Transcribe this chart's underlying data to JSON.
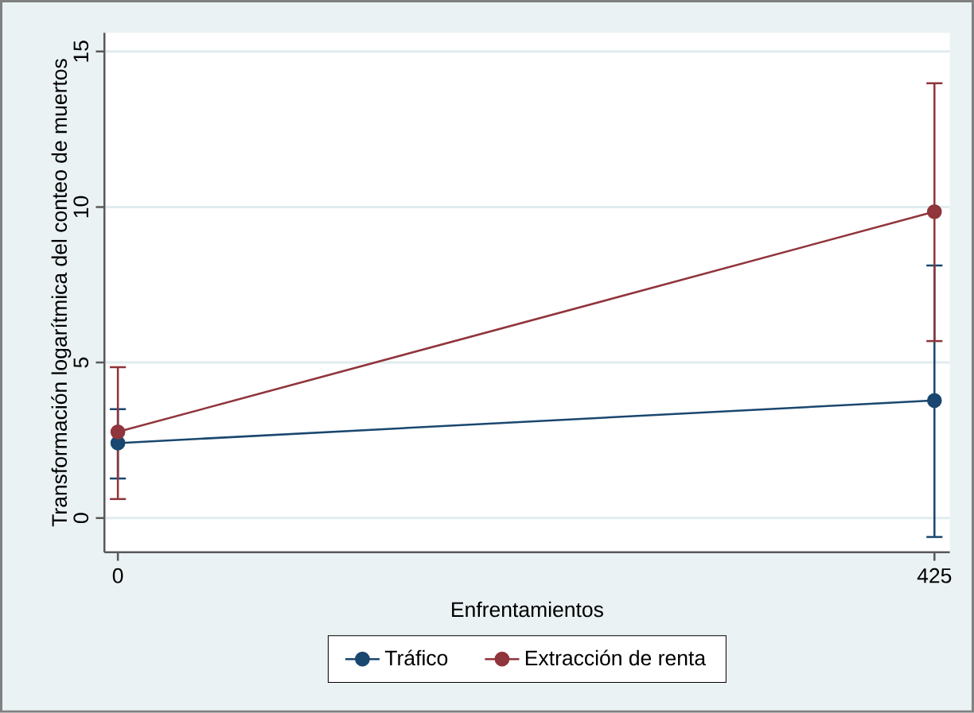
{
  "chart_data": {
    "type": "line",
    "xlabel": "Enfrentamientos",
    "ylabel": "Transformación logarítmica del conteo de muertos",
    "x": [
      0,
      425
    ],
    "xlim": [
      -7,
      433
    ],
    "xticks": [
      0,
      425
    ],
    "ylim": [
      -1.1,
      15.6
    ],
    "yticks": [
      0,
      5,
      10,
      15
    ],
    "grid": "y",
    "legend": "bottom",
    "marker": "circle",
    "line_style": "solid",
    "series": [
      {
        "name": "Tráfico",
        "color": "#1a476f",
        "values": [
          2.41,
          3.78
        ],
        "errors": [
          [
            1.27,
            3.5
          ],
          [
            -0.61,
            8.12
          ]
        ]
      },
      {
        "name": "Extracción de renta",
        "color": "#90353b",
        "values": [
          2.77,
          9.85
        ],
        "errors": [
          [
            0.61,
            4.85
          ],
          [
            5.69,
            13.98
          ]
        ]
      }
    ]
  }
}
